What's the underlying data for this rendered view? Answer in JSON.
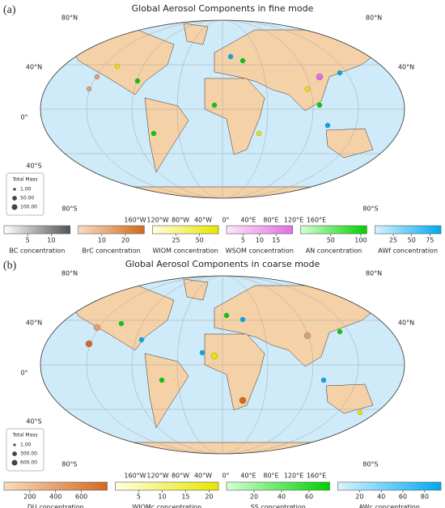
{
  "panels": [
    {
      "label": "(a)",
      "title": "Global Aerosol Components in fine mode",
      "lat_labels_left": [
        "80°N",
        "40°N",
        "0°",
        "40°S",
        "80°S"
      ],
      "lat_labels_right": [
        "80°N",
        "40°N",
        "80°S"
      ],
      "lon_labels": [
        "160°W",
        "120°W",
        "80°W",
        "40°W",
        "0°",
        "40°E",
        "80°E",
        "120°E",
        "160°E"
      ],
      "legend": {
        "title": "Total Mass",
        "sizes": [
          {
            "value": 1,
            "label": "1.00"
          },
          {
            "value": 50,
            "label": "50.00"
          },
          {
            "value": 100,
            "label": "100.00"
          }
        ]
      },
      "colorbars": [
        {
          "label": "BC concentration",
          "colors": [
            "#ffffff",
            "#555555"
          ],
          "lim": [
            0,
            14
          ],
          "ticks": [
            5,
            10
          ]
        },
        {
          "label": "BrC concentration",
          "colors": [
            "#f8dcc0",
            "#d2691e"
          ],
          "lim": [
            0,
            28
          ],
          "ticks": [
            10,
            20
          ]
        },
        {
          "label": "WIOM concentration",
          "colors": [
            "#ffffe0",
            "#e6e600"
          ],
          "lim": [
            0,
            70
          ],
          "ticks": [
            25,
            50
          ]
        },
        {
          "label": "WSOM concentration",
          "colors": [
            "#fde6fa",
            "#e070e0"
          ],
          "lim": [
            0,
            20
          ],
          "ticks": [
            5,
            10,
            15
          ]
        },
        {
          "label": "AN concentration",
          "colors": [
            "#d6ffd6",
            "#00d000"
          ],
          "lim": [
            0,
            110
          ],
          "ticks": [
            50,
            100
          ]
        },
        {
          "label": "AWf concentration",
          "colors": [
            "#d8f4ff",
            "#00a8ee"
          ],
          "lim": [
            0,
            90
          ],
          "ticks": [
            25,
            50,
            75
          ]
        }
      ]
    },
    {
      "label": "(b)",
      "title": "Global Aerosol Components in coarse mode",
      "lat_labels_left": [
        "80°N",
        "40°N",
        "0°",
        "40°S",
        "80°S"
      ],
      "lat_labels_right": [
        "80°N",
        "40°N",
        "80°S"
      ],
      "lon_labels": [
        "160°W",
        "120°W",
        "80°W",
        "40°W",
        "0°",
        "40°E",
        "80°E",
        "120°E",
        "160°E"
      ],
      "legend": {
        "title": "Total Mass",
        "sizes": [
          {
            "value": 1,
            "label": "1.00"
          },
          {
            "value": 300,
            "label": "300.00"
          },
          {
            "value": 600,
            "label": "600.00"
          }
        ]
      },
      "colorbars": [
        {
          "label": "DU concentration",
          "colors": [
            "#f8dcc0",
            "#d2691e"
          ],
          "lim": [
            0,
            800
          ],
          "ticks": [
            200,
            400,
            600
          ]
        },
        {
          "label": "WIOMc concentration",
          "colors": [
            "#ffffe0",
            "#e6e600"
          ],
          "lim": [
            0,
            22
          ],
          "ticks": [
            5,
            10,
            15,
            20
          ]
        },
        {
          "label": "SS concentration",
          "colors": [
            "#d6ffd6",
            "#00d000"
          ],
          "lim": [
            0,
            75
          ],
          "ticks": [
            20,
            40,
            60
          ]
        },
        {
          "label": "AWc concentration",
          "colors": [
            "#d8f4ff",
            "#00a8ee"
          ],
          "lim": [
            0,
            95
          ],
          "ticks": [
            20,
            40,
            60,
            80
          ]
        }
      ]
    }
  ]
}
